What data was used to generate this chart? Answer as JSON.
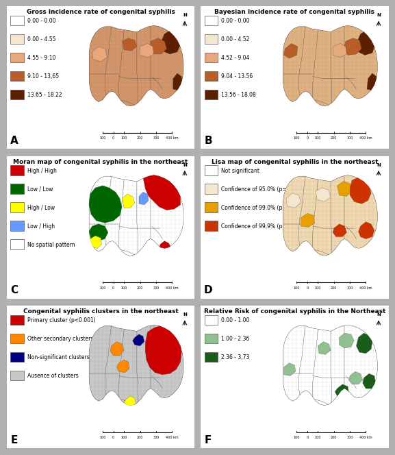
{
  "panels": [
    {
      "label": "A",
      "title": "Gross incidence rate of congenital syphilis",
      "legend_entries": [
        {
          "color": "#FFFFFF",
          "text": "0.00 - 0.00",
          "edge": "#999999"
        },
        {
          "color": "#F5E6D0",
          "text": "0.00 - 4.55",
          "edge": "#999999"
        },
        {
          "color": "#E8A87C",
          "text": "4.55 - 9.10",
          "edge": "#999999"
        },
        {
          "color": "#B85C28",
          "text": "9.10 - 13,65",
          "edge": "#999999"
        },
        {
          "color": "#5C2000",
          "text": "13.65 - 18.22",
          "edge": "#999999"
        }
      ],
      "map_colors": [
        "#F5E6D0",
        "#E8A87C",
        "#B85C28",
        "#5C2000"
      ],
      "map_dominant": "#D4956A"
    },
    {
      "label": "B",
      "title": "Bayesian incidence rate of congenital syphilis",
      "legend_entries": [
        {
          "color": "#FFFFFF",
          "text": "0.00 - 0.00",
          "edge": "#999999"
        },
        {
          "color": "#F5E6D0",
          "text": "0.00 - 4.52",
          "edge": "#999999"
        },
        {
          "color": "#E8A87C",
          "text": "4.52 - 9.04",
          "edge": "#999999"
        },
        {
          "color": "#B85C28",
          "text": "9.04 - 13.56",
          "edge": "#999999"
        },
        {
          "color": "#5C2000",
          "text": "13.56 - 18.08",
          "edge": "#999999"
        }
      ],
      "map_colors": [
        "#F5DFC0",
        "#E8B890",
        "#C07040",
        "#5C2000"
      ],
      "map_dominant": "#E0B080"
    },
    {
      "label": "C",
      "title": "Moran map of congenital syphilis in the northeast",
      "legend_entries": [
        {
          "color": "#CC0000",
          "text": "High / High",
          "edge": "#999999"
        },
        {
          "color": "#006600",
          "text": "Low / Low",
          "edge": "#999999"
        },
        {
          "color": "#FFFF00",
          "text": "High / Low",
          "edge": "#999999"
        },
        {
          "color": "#6699FF",
          "text": "Low / High",
          "edge": "#999999"
        },
        {
          "color": "#FFFFFF",
          "text": "No spatial pattern",
          "edge": "#999999"
        }
      ],
      "map_dominant": "#FFFFFF"
    },
    {
      "label": "D",
      "title": "Lisa map of congenital syphilis in the northeast",
      "legend_entries": [
        {
          "color": "#FFFFFF",
          "text": "Not significant",
          "edge": "#999999"
        },
        {
          "color": "#F5E6D0",
          "text": "Confidence of 95.0% (p=0.05)",
          "edge": "#999999"
        },
        {
          "color": "#E8A000",
          "text": "Confidence of 99.0% (p=0.01)",
          "edge": "#999999"
        },
        {
          "color": "#CC3300",
          "text": "Confidence of 99,9% (p=0.001)",
          "edge": "#999999"
        }
      ],
      "map_dominant": "#F0D8B0"
    },
    {
      "label": "E",
      "title": "Congenital syphilis clusters in the northeast",
      "legend_entries": [
        {
          "color": "#CC0000",
          "text": "Primary cluster (p<0.001)",
          "edge": "#999999"
        },
        {
          "color": "#FF8800",
          "text": "Other secondary clusters (p<0.05)",
          "edge": "#999999"
        },
        {
          "color": "#000080",
          "text": "Non-significant clusters (p>0.05)",
          "edge": "#999999"
        },
        {
          "color": "#C8C8C8",
          "text": "Ausence of clusters",
          "edge": "#999999"
        }
      ],
      "map_dominant": "#C8C8C8"
    },
    {
      "label": "F",
      "title": "Relative Risk of congenital syphilis in the Northeast",
      "legend_entries": [
        {
          "color": "#FFFFFF",
          "text": "0.00 - 1.00",
          "edge": "#999999"
        },
        {
          "color": "#90C090",
          "text": "1.00 - 2.36",
          "edge": "#999999"
        },
        {
          "color": "#1A5C1A",
          "text": "2.36 - 3,73",
          "edge": "#999999"
        }
      ],
      "map_dominant": "#FFFFFF"
    }
  ],
  "outer_bg": "#B0B0B0",
  "panel_bg": "#FFFFFF",
  "title_fontsize": 6.5,
  "legend_fontsize": 5.5,
  "label_fontsize": 11,
  "scale_text": "100  0  100 200 300 400 km"
}
